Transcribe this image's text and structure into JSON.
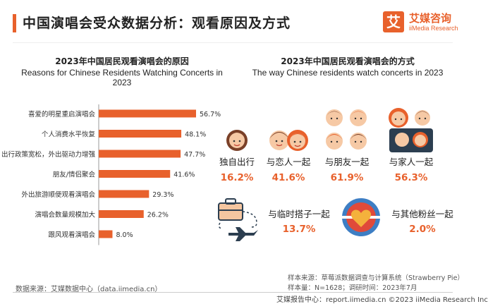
{
  "header": {
    "title": "中国演唱会受众数据分析：观看原因及方式",
    "logo_mark": "艾",
    "logo_cn": "艾媒咨询",
    "logo_en": "iiMedia Research"
  },
  "left_chart": {
    "title_cn": "2023年中国居民观看演唱会的原因",
    "title_en": "Reasons for Chinese Residents Watching Concerts in 2023"
  },
  "right_panel": {
    "title_cn": "2023年中国居民观看演唱会的方式",
    "title_en": "The way Chinese residents watch concerts in 2023",
    "ways": [
      {
        "label": "独自出行",
        "value": "16.2%"
      },
      {
        "label": "与恋人一起",
        "value": "41.6%"
      },
      {
        "label": "与朋友一起",
        "value": "61.9%"
      },
      {
        "label": "与家人一起",
        "value": "56.3%"
      },
      {
        "label": "与临时搭子一起",
        "value": "13.7%"
      },
      {
        "label": "与其他粉丝一起",
        "value": "2.0%"
      }
    ]
  },
  "chart_data": [
    {
      "type": "bar",
      "orientation": "horizontal",
      "title": "2023年中国居民观看演唱会的原因",
      "subtitle": "Reasons for Chinese Residents Watching Concerts in 2023",
      "categories": [
        "喜爱的明星重启演唱会",
        "个人消费水平恢复",
        "出行政策宽松，外出驱动力增强",
        "朋友/情侣聚会",
        "外出旅游顺便观看演唱会",
        "演唱会数量规模加大",
        "跟风观看演唱会"
      ],
      "values": [
        56.7,
        48.1,
        47.7,
        41.6,
        29.3,
        26.2,
        8.0
      ],
      "value_labels": [
        "56.7%",
        "48.1%",
        "47.7%",
        "41.6%",
        "29.3%",
        "26.2%",
        "8.0%"
      ],
      "unit": "%",
      "color": "#e8612c",
      "grid": false
    },
    {
      "type": "table",
      "title": "2023年中国居民观看演唱会的方式",
      "subtitle": "The way Chinese residents watch concerts in 2023",
      "categories": [
        "独自出行",
        "与恋人一起",
        "与朋友一起",
        "与家人一起",
        "与临时搭子一起",
        "与其他粉丝一起"
      ],
      "values": [
        16.2,
        41.6,
        61.9,
        56.3,
        13.7,
        2.0
      ],
      "unit": "%"
    }
  ],
  "footer": {
    "source_left": "数据来源：艾媒数据中心（data.iimedia.cn）",
    "sample_source": "样本来源：草莓派数据调查与计算系统（Strawberry Pie）",
    "sample_size": "样本量：N=1628；调研时间：2023年7月",
    "report_center": "艾媒报告中心：report.iimedia.cn  ©2023  iiMedia Research Inc"
  },
  "colors": {
    "accent": "#e8612c",
    "value_text": "#e8612c",
    "heart_red": "#e04a3a",
    "blue": "#3d7ec4"
  }
}
